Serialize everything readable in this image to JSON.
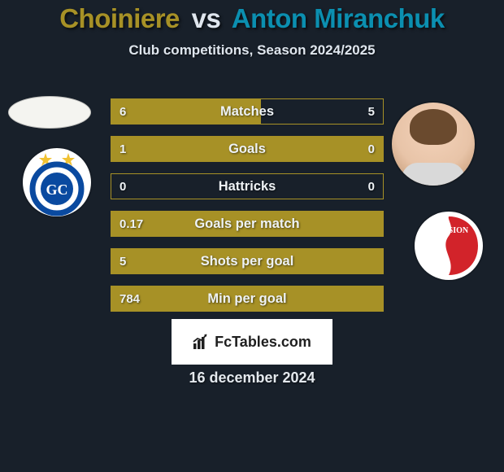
{
  "player_a": {
    "name": "Choiniere",
    "color": "#a79126"
  },
  "player_b": {
    "name": "Anton Miranchuk",
    "color": "#0b8fb0"
  },
  "subtitle": "Club competitions, Season 2024/2025",
  "bar_style": {
    "border_color": "#a79126",
    "fill_color": "#a79126",
    "track_color": "#18202a",
    "label_color": "#eef2f5"
  },
  "stats": [
    {
      "label": "Matches",
      "a": "6",
      "b": "5",
      "fill_pct": 55
    },
    {
      "label": "Goals",
      "a": "1",
      "b": "0",
      "fill_pct": 100
    },
    {
      "label": "Hattricks",
      "a": "0",
      "b": "0",
      "fill_pct": 0
    },
    {
      "label": "Goals per match",
      "a": "0.17",
      "b": "",
      "fill_pct": 100
    },
    {
      "label": "Shots per goal",
      "a": "5",
      "b": "",
      "fill_pct": 100
    },
    {
      "label": "Min per goal",
      "a": "784",
      "b": "",
      "fill_pct": 100
    }
  ],
  "watermark": "FcTables.com",
  "date": "16 december 2024",
  "club_a": {
    "stars_color": "#f1c232",
    "ring_color": "#0a4aa0",
    "letters": "GC",
    "letters_color": "#ffffff",
    "inner_bg": "#0a4aa0"
  },
  "club_b": {
    "outer_bg": "#ffffff",
    "wave_color": "#d2232a",
    "text": "FC SION",
    "text_color": "#ffffff"
  }
}
